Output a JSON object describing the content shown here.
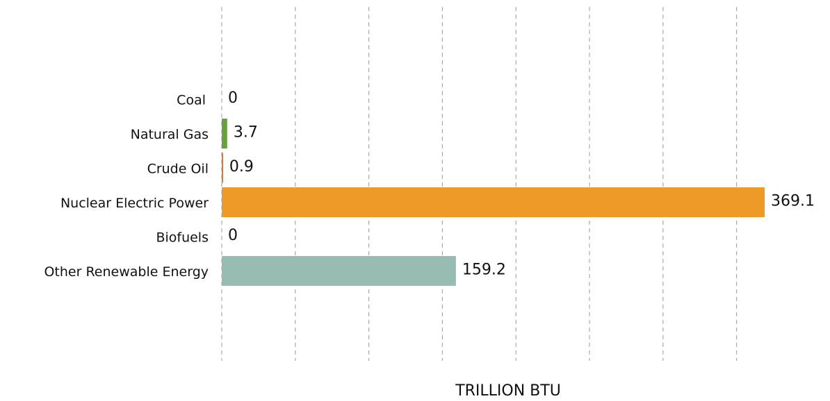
{
  "chart_data": {
    "type": "hbar",
    "categories": [
      "Coal",
      "Natural Gas",
      "Crude Oil",
      "Nuclear Electric Power",
      "Biofuels",
      "Other Renewable Energy"
    ],
    "values": [
      0,
      3.7,
      0.9,
      369.1,
      0,
      159.2
    ],
    "colors": [
      "#5a5a5a",
      "#6a9e3f",
      "#c9743a",
      "#ee9a27",
      "#7aa05a",
      "#96bcb4"
    ],
    "xlabel": "TRILLION BTU",
    "xlim": [
      0,
      380
    ],
    "xticks": [
      0,
      50,
      100,
      150,
      200,
      250,
      300,
      350
    ],
    "grid": true
  }
}
